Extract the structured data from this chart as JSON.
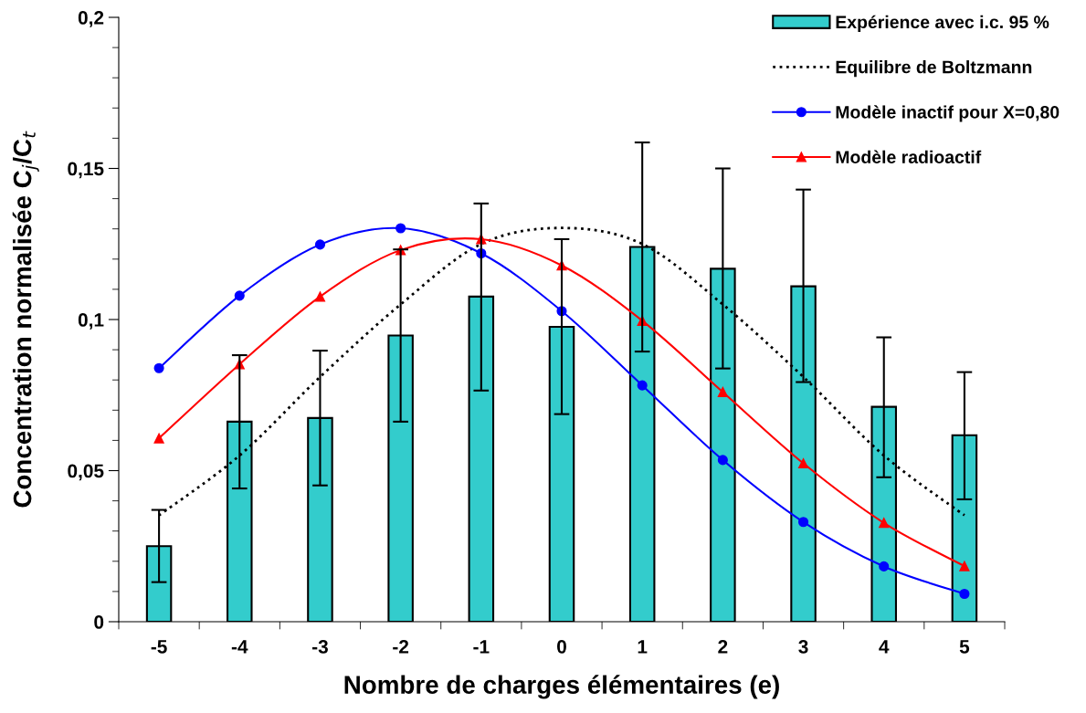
{
  "chart_data": {
    "type": "bar",
    "xlabel": "Nombre de charges élémentaires (e)",
    "ylabel": "Concentration normalisée C$_{j}$/C$_{t}$",
    "categories": [
      "-5",
      "-4",
      "-3",
      "-2",
      "-1",
      "0",
      "1",
      "2",
      "3",
      "4",
      "5"
    ],
    "ylim": [
      0,
      0.2
    ],
    "yticks": [
      {
        "value": 0,
        "label": "0"
      },
      {
        "value": 0.01,
        "label": null
      },
      {
        "value": 0.02,
        "label": null
      },
      {
        "value": 0.03,
        "label": null
      },
      {
        "value": 0.04,
        "label": null
      },
      {
        "value": 0.05,
        "label": "0,05"
      },
      {
        "value": 0.06,
        "label": null
      },
      {
        "value": 0.07,
        "label": null
      },
      {
        "value": 0.08,
        "label": null
      },
      {
        "value": 0.09,
        "label": null
      },
      {
        "value": 0.1,
        "label": "0,1"
      },
      {
        "value": 0.11,
        "label": null
      },
      {
        "value": 0.12,
        "label": null
      },
      {
        "value": 0.13,
        "label": null
      },
      {
        "value": 0.14,
        "label": null
      },
      {
        "value": 0.15,
        "label": "0,15"
      },
      {
        "value": 0.16,
        "label": null
      },
      {
        "value": 0.17,
        "label": null
      },
      {
        "value": 0.18,
        "label": null
      },
      {
        "value": 0.19,
        "label": null
      },
      {
        "value": 0.2,
        "label": "0,2"
      }
    ],
    "grid": false,
    "legend": "top right",
    "series": [
      {
        "name": "Expérience avec i.c. 95 %",
        "color": "#33cccc",
        "values": [
          0.025,
          0.0662,
          0.0674,
          0.0947,
          0.1076,
          0.0976,
          0.124,
          0.1168,
          0.111,
          0.0711,
          0.0617
        ],
        "errors": [
          [
            0.0131,
            0.037
          ],
          [
            0.0441,
            0.0882
          ],
          [
            0.0451,
            0.0897
          ],
          [
            0.0662,
            0.1232
          ],
          [
            0.0765,
            0.1384
          ],
          [
            0.0687,
            0.1266
          ],
          [
            0.0894,
            0.1586
          ],
          [
            0.0838,
            0.15
          ],
          [
            0.0793,
            0.143
          ],
          [
            0.0478,
            0.0941
          ],
          [
            0.0405,
            0.0826
          ]
        ]
      },
      {
        "name": "Equilibre de Boltzmann",
        "type": "line",
        "color": "#000000",
        "line_style": "dotted",
        "marker": "none",
        "values": [
          0.0352,
          0.055,
          0.081,
          0.105,
          0.125,
          0.1303,
          0.125,
          0.105,
          0.081,
          0.055,
          0.0352
        ]
      },
      {
        "name": "Modèle inactif pour X=0,80",
        "type": "line",
        "color": "#0000ff",
        "line_style": "solid",
        "marker": "circle",
        "values": [
          0.0839,
          0.1079,
          0.1248,
          0.1302,
          0.1219,
          0.1028,
          0.0782,
          0.0535,
          0.033,
          0.0183,
          0.0092
        ]
      },
      {
        "name": "Modèle radioactif",
        "type": "line",
        "color": "#ff0000",
        "line_style": "solid",
        "marker": "triangle",
        "values": [
          0.0607,
          0.0852,
          0.1076,
          0.123,
          0.1266,
          0.1179,
          0.0996,
          0.076,
          0.0524,
          0.0327,
          0.0184
        ]
      }
    ]
  }
}
